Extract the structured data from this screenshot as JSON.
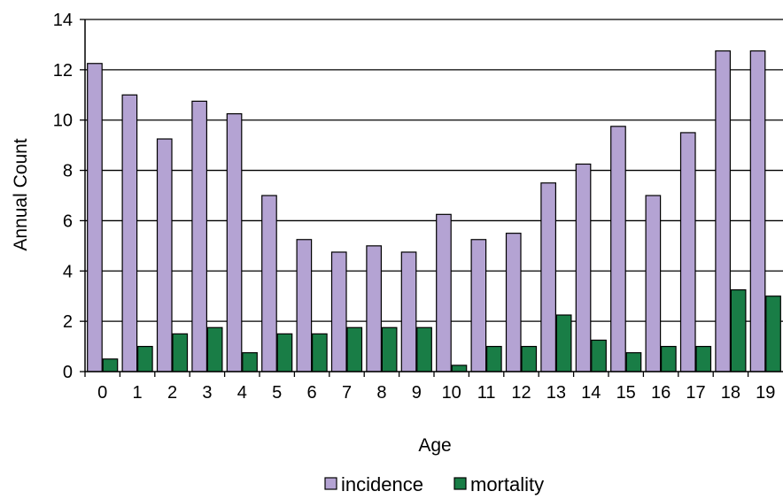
{
  "chart_data": {
    "type": "bar",
    "title": "",
    "xlabel": "Age",
    "ylabel": "Annual Count",
    "ylim": [
      0,
      14
    ],
    "y_ticks": [
      0,
      2,
      4,
      6,
      8,
      10,
      12,
      14
    ],
    "grid": "horizontal",
    "legend_position": "bottom",
    "categories": [
      "0",
      "1",
      "2",
      "3",
      "4",
      "5",
      "6",
      "7",
      "8",
      "9",
      "10",
      "11",
      "12",
      "13",
      "14",
      "15",
      "16",
      "17",
      "18",
      "19"
    ],
    "series": [
      {
        "name": "incidence",
        "color": "#B4A3D3",
        "values": [
          12.25,
          11,
          9.25,
          10.75,
          10.25,
          7,
          5.25,
          4.75,
          5,
          4.75,
          6.25,
          5.25,
          5.5,
          7.5,
          8.25,
          9.75,
          7,
          9.5,
          12.75,
          12.75
        ]
      },
      {
        "name": "mortality",
        "color": "#197D46",
        "values": [
          0.5,
          1,
          1.5,
          1.75,
          0.75,
          1.5,
          1.5,
          1.75,
          1.75,
          1.75,
          0.25,
          1,
          1,
          2.25,
          1.25,
          0.75,
          1,
          1,
          3.25,
          3
        ]
      }
    ]
  }
}
